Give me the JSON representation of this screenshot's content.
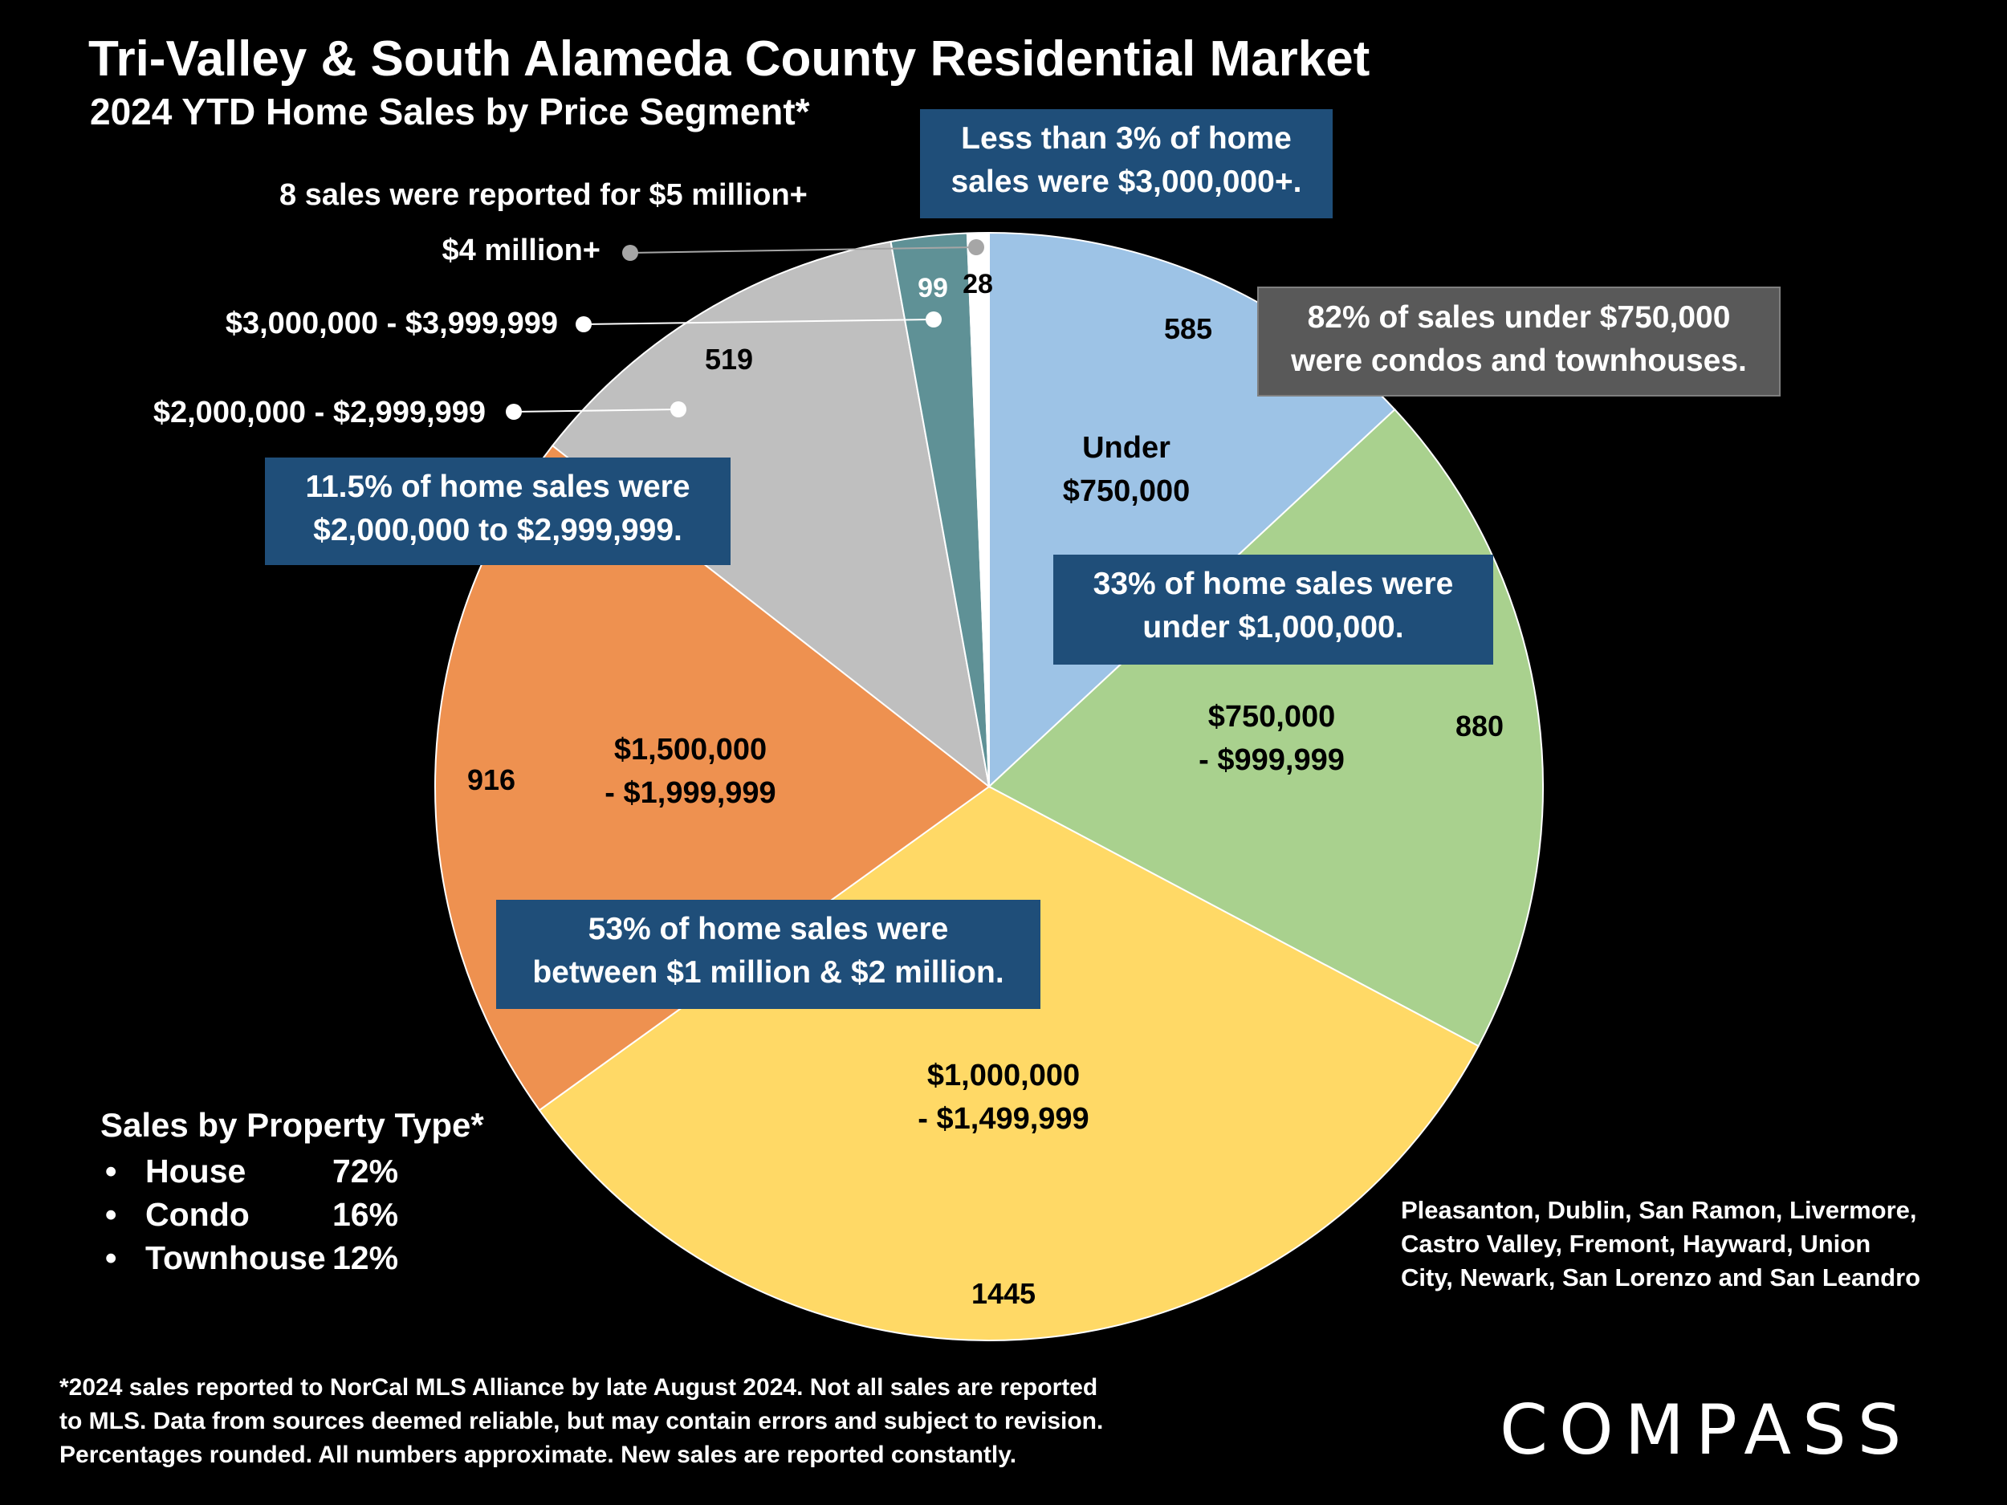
{
  "title": "Tri-Valley & South Alameda County Residential Market",
  "subtitle": "2024 YTD Home Sales by Price Segment*",
  "chart_data": {
    "type": "pie",
    "title": "2024 YTD Home Sales by Price Segment*",
    "slices": [
      {
        "label": "Under $750,000",
        "label_lines": [
          "Under",
          "$750,000"
        ],
        "value": 585,
        "color": "#9dc3e6"
      },
      {
        "label": "$750,000 - $999,999",
        "label_lines": [
          "$750,000",
          "- $999,999"
        ],
        "value": 880,
        "color": "#a9d18e"
      },
      {
        "label": "$1,000,000 - $1,499,999",
        "label_lines": [
          "$1,000,000",
          "- $1,499,999"
        ],
        "value": 1445,
        "color": "#ffd966"
      },
      {
        "label": "$1,500,000 - $1,999,999",
        "label_lines": [
          "$1,500,000",
          "- $1,999,999"
        ],
        "value": 916,
        "color": "#ee9150"
      },
      {
        "label": "$2,000,000 - $2,999,999",
        "label_lines": [],
        "value": 519,
        "color": "#bfbfbf"
      },
      {
        "label": "$3,000,000 - $3,999,999",
        "label_lines": [],
        "value": 99,
        "color": "#5f9196"
      },
      {
        "label": "$4 million+",
        "label_lines": [],
        "value": 28,
        "color": "#ffffff"
      }
    ],
    "external_labels": [
      {
        "text": "$4 million+",
        "slice": 6
      },
      {
        "text": "$3,000,000 - $3,999,999",
        "slice": 5
      },
      {
        "text": "$2,000,000 - $2,999,999",
        "slice": 4
      }
    ],
    "annotation": "8 sales were reported for $5 million+"
  },
  "callouts": {
    "top_3m": [
      "Less than 3% of home",
      "sales were $3,000,000+."
    ],
    "condos": [
      "82% of sales under $750,000",
      "were condos and townhouses."
    ],
    "under_1m": [
      "33% of home sales were",
      "under $1,000,000."
    ],
    "two_to_three": [
      "11.5% of home sales were",
      "$2,000,000 to $2,999,999."
    ],
    "one_to_two": [
      "53% of home sales were",
      "between $1 million & $2 million."
    ]
  },
  "property_type": {
    "heading": "Sales by Property Type*",
    "bullet": "•",
    "items": [
      {
        "name": "House",
        "pct": "72%"
      },
      {
        "name": "Condo",
        "pct": "16%"
      },
      {
        "name": "Townhouse",
        "pct": "12%"
      }
    ]
  },
  "cities": [
    "Pleasanton, Dublin, San Ramon, Livermore,",
    "Castro Valley, Fremont, Hayward, Union",
    "City, Newark, San Lorenzo and San Leandro"
  ],
  "footnote": [
    "*2024 sales reported to NorCal MLS Alliance by late August 2024. Not all sales are reported",
    "to MLS. Data from sources deemed reliable, but may contain errors and subject to revision.",
    "Percentages rounded. All numbers approximate. New sales are reported constantly."
  ],
  "brand": "COMPASS"
}
